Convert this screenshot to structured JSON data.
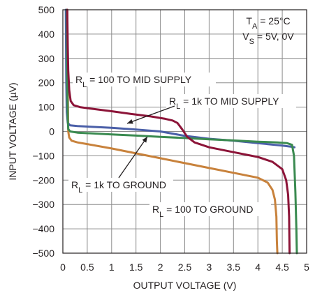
{
  "chart_data": {
    "type": "line",
    "xlabel": "OUTPUT VOLTAGE (V)",
    "ylabel": "INPUT VOLTAGE (µV)",
    "xlim": [
      0,
      5
    ],
    "ylim": [
      -500,
      500
    ],
    "x_ticks": [
      "0",
      "0.5",
      "1",
      "1.5",
      "2",
      "2.5",
      "3",
      "3.5",
      "4",
      "4.5",
      "5"
    ],
    "y_ticks": [
      "500",
      "400",
      "300",
      "200",
      "100",
      "0",
      "−100",
      "−200",
      "−300",
      "−400",
      "−500"
    ],
    "grid": true,
    "conditions": {
      "ta": {
        "pre": "T",
        "sub": "A",
        "post": " = 25°C"
      },
      "vs": {
        "pre": "V",
        "sub": "S",
        "post": " = 5V, 0V"
      }
    },
    "series": [
      {
        "name": "R_L = 100 TO MID SUPPLY",
        "color": "#8c1438",
        "label": {
          "pre": "R",
          "sub": "L",
          "post": " = 100 TO MID SUPPLY"
        },
        "points": [
          [
            0.09,
            500
          ],
          [
            0.1,
            350
          ],
          [
            0.11,
            250
          ],
          [
            0.13,
            170
          ],
          [
            0.16,
            125
          ],
          [
            0.22,
            108
          ],
          [
            0.35,
            100
          ],
          [
            0.6,
            93
          ],
          [
            1.0,
            83
          ],
          [
            1.4,
            72
          ],
          [
            1.8,
            62
          ],
          [
            2.1,
            52
          ],
          [
            2.25,
            45
          ],
          [
            2.35,
            35
          ],
          [
            2.45,
            8
          ],
          [
            2.55,
            -22
          ],
          [
            2.7,
            -45
          ],
          [
            3.0,
            -65
          ],
          [
            3.5,
            -85
          ],
          [
            4.0,
            -105
          ],
          [
            4.3,
            -125
          ],
          [
            4.5,
            -155
          ],
          [
            4.58,
            -200
          ],
          [
            4.62,
            -260
          ],
          [
            4.64,
            -350
          ],
          [
            4.65,
            -500
          ]
        ]
      },
      {
        "name": "R_L = 1k TO MID SUPPLY",
        "color": "#4a5fa8",
        "label": {
          "pre": "R",
          "sub": "L",
          "post": " = 1k TO MID SUPPLY"
        },
        "points": [
          [
            0.06,
            500
          ],
          [
            0.07,
            200
          ],
          [
            0.08,
            80
          ],
          [
            0.1,
            35
          ],
          [
            0.15,
            25
          ],
          [
            0.3,
            22
          ],
          [
            1.0,
            15
          ],
          [
            1.5,
            8
          ],
          [
            2.0,
            0
          ],
          [
            2.5,
            -18
          ],
          [
            3.0,
            -30
          ],
          [
            3.5,
            -38
          ],
          [
            4.0,
            -48
          ],
          [
            4.5,
            -58
          ],
          [
            4.7,
            -63
          ],
          [
            4.75,
            -65
          ]
        ]
      },
      {
        "name": "R_L = 1k TO GROUND",
        "color": "#3a8a50",
        "label": {
          "pre": "R",
          "sub": "L",
          "post": " = 1k TO GROUND"
        },
        "points": [
          [
            0.08,
            500
          ],
          [
            0.09,
            200
          ],
          [
            0.1,
            50
          ],
          [
            0.11,
            10
          ],
          [
            0.15,
            0
          ],
          [
            0.3,
            -5
          ],
          [
            1.0,
            -12
          ],
          [
            1.5,
            -17
          ],
          [
            2.0,
            -22
          ],
          [
            2.5,
            -27
          ],
          [
            3.0,
            -32
          ],
          [
            3.5,
            -37
          ],
          [
            4.0,
            -42
          ],
          [
            4.4,
            -45
          ],
          [
            4.6,
            -48
          ],
          [
            4.7,
            -55
          ],
          [
            4.74,
            -100
          ],
          [
            4.77,
            -250
          ],
          [
            4.79,
            -400
          ],
          [
            4.8,
            -500
          ]
        ]
      },
      {
        "name": "R_L = 100 TO GROUND",
        "color": "#c8823c",
        "label": {
          "pre": "R",
          "sub": "L",
          "post": " = 100 TO GROUND"
        },
        "points": [
          [
            0.09,
            500
          ],
          [
            0.1,
            200
          ],
          [
            0.11,
            0
          ],
          [
            0.13,
            -25
          ],
          [
            0.18,
            -38
          ],
          [
            0.3,
            -45
          ],
          [
            0.5,
            -52
          ],
          [
            1.0,
            -70
          ],
          [
            1.5,
            -90
          ],
          [
            2.0,
            -110
          ],
          [
            2.5,
            -130
          ],
          [
            3.0,
            -150
          ],
          [
            3.5,
            -170
          ],
          [
            4.0,
            -190
          ],
          [
            4.2,
            -210
          ],
          [
            4.3,
            -240
          ],
          [
            4.35,
            -280
          ],
          [
            4.38,
            -350
          ],
          [
            4.39,
            -450
          ],
          [
            4.4,
            -500
          ]
        ]
      }
    ]
  }
}
